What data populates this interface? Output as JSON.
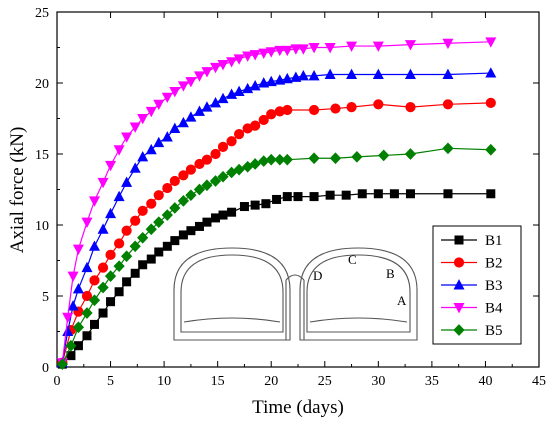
{
  "chart_data": {
    "type": "line",
    "xlabel": "Time (days)",
    "ylabel": "Axial force (kN)",
    "xlim": [
      0,
      45
    ],
    "ylim": [
      0,
      25
    ],
    "xticks": [
      0,
      5,
      10,
      15,
      20,
      25,
      30,
      35,
      40,
      45
    ],
    "yticks": [
      0,
      5,
      10,
      15,
      20,
      25
    ],
    "grid": false,
    "legend_position": "bottom-right",
    "series": [
      {
        "name": "B1",
        "color": "#000000",
        "marker": "square",
        "x": [
          0.5,
          1.3,
          2.0,
          2.8,
          3.5,
          4.3,
          5.0,
          5.8,
          6.5,
          7.3,
          8.0,
          8.8,
          9.5,
          10.3,
          11.0,
          11.8,
          12.5,
          13.3,
          14.0,
          14.8,
          15.5,
          16.3,
          17.5,
          18.5,
          19.5,
          20.5,
          21.5,
          22.5,
          24.0,
          25.5,
          27.0,
          28.5,
          30.0,
          31.5,
          33.0,
          36.5,
          40.5
        ],
        "y": [
          0.2,
          0.8,
          1.5,
          2.2,
          3.0,
          3.8,
          4.6,
          5.3,
          6.0,
          6.6,
          7.2,
          7.6,
          8.1,
          8.5,
          8.9,
          9.3,
          9.6,
          9.9,
          10.2,
          10.5,
          10.7,
          10.9,
          11.3,
          11.4,
          11.5,
          11.8,
          12.0,
          12.0,
          12.0,
          12.1,
          12.1,
          12.2,
          12.2,
          12.2,
          12.2,
          12.2,
          12.2
        ]
      },
      {
        "name": "B2",
        "color": "#ff0000",
        "marker": "circle",
        "x": [
          0.5,
          1.3,
          2.0,
          2.8,
          3.5,
          4.3,
          5.0,
          5.8,
          6.5,
          7.3,
          8.0,
          8.8,
          9.5,
          10.3,
          11.0,
          11.8,
          12.5,
          13.3,
          14.0,
          14.8,
          15.5,
          16.3,
          17.0,
          17.8,
          18.5,
          19.3,
          20.0,
          20.8,
          21.5,
          24.0,
          26.0,
          27.5,
          30.0,
          33.0,
          36.5,
          40.5
        ],
        "y": [
          0.3,
          2.6,
          3.9,
          5.0,
          6.1,
          7.0,
          7.9,
          8.7,
          9.6,
          10.3,
          11.0,
          11.5,
          12.1,
          12.6,
          13.1,
          13.5,
          13.9,
          14.3,
          14.6,
          15.0,
          15.5,
          15.9,
          16.4,
          16.8,
          17.0,
          17.4,
          17.8,
          18.0,
          18.1,
          18.1,
          18.2,
          18.3,
          18.5,
          18.3,
          18.5,
          18.6
        ]
      },
      {
        "name": "B3",
        "color": "#0000ff",
        "marker": "triangle-up",
        "x": [
          0.5,
          1.0,
          1.5,
          2.0,
          2.8,
          3.5,
          4.3,
          5.0,
          5.8,
          6.5,
          7.3,
          8.0,
          8.8,
          9.5,
          10.3,
          11.0,
          11.8,
          12.5,
          13.3,
          14.0,
          14.8,
          15.5,
          16.3,
          17.0,
          17.8,
          18.5,
          19.3,
          20.0,
          20.8,
          21.5,
          22.3,
          23.0,
          24.0,
          25.5,
          27.5,
          30.0,
          33.0,
          36.5,
          40.5
        ],
        "y": [
          0.3,
          2.5,
          4.3,
          5.5,
          7.0,
          8.5,
          9.7,
          10.8,
          12.0,
          13.0,
          14.0,
          14.8,
          15.3,
          15.8,
          16.2,
          16.8,
          17.2,
          17.6,
          18.0,
          18.3,
          18.6,
          18.9,
          19.2,
          19.4,
          19.6,
          19.8,
          20.0,
          20.1,
          20.2,
          20.3,
          20.4,
          20.5,
          20.5,
          20.6,
          20.6,
          20.6,
          20.6,
          20.6,
          20.7
        ]
      },
      {
        "name": "B4",
        "color": "#ff00ff",
        "marker": "triangle-down",
        "x": [
          0.5,
          1.0,
          1.5,
          2.0,
          2.8,
          3.5,
          4.3,
          5.0,
          5.8,
          6.5,
          7.3,
          8.0,
          8.8,
          9.5,
          10.3,
          11.0,
          11.8,
          12.5,
          13.3,
          14.0,
          14.8,
          15.5,
          16.3,
          17.0,
          17.8,
          18.5,
          19.3,
          20.0,
          20.8,
          21.5,
          22.3,
          23.0,
          24.0,
          25.5,
          27.5,
          30.0,
          33.0,
          36.5,
          40.5
        ],
        "y": [
          0.3,
          3.5,
          6.4,
          8.3,
          10.2,
          11.7,
          13.0,
          14.2,
          15.3,
          16.2,
          16.9,
          17.5,
          18.0,
          18.5,
          19.0,
          19.4,
          19.8,
          20.1,
          20.5,
          20.8,
          21.1,
          21.3,
          21.5,
          21.7,
          21.9,
          22.0,
          22.1,
          22.2,
          22.3,
          22.3,
          22.4,
          22.4,
          22.5,
          22.5,
          22.6,
          22.6,
          22.7,
          22.8,
          22.9
        ]
      },
      {
        "name": "B5",
        "color": "#008000",
        "marker": "diamond",
        "x": [
          0.5,
          1.3,
          2.0,
          2.8,
          3.5,
          4.3,
          5.0,
          5.8,
          6.5,
          7.3,
          8.0,
          8.8,
          9.5,
          10.3,
          11.0,
          11.8,
          12.5,
          13.3,
          14.0,
          14.8,
          15.5,
          16.3,
          17.0,
          17.8,
          18.5,
          19.3,
          20.0,
          20.8,
          21.5,
          24.0,
          26.0,
          28.0,
          30.5,
          33.0,
          36.5,
          40.5
        ],
        "y": [
          0.2,
          1.5,
          2.8,
          3.8,
          4.7,
          5.6,
          6.4,
          7.1,
          7.8,
          8.5,
          9.1,
          9.7,
          10.2,
          10.7,
          11.2,
          11.7,
          12.1,
          12.5,
          12.8,
          13.1,
          13.4,
          13.7,
          13.9,
          14.1,
          14.3,
          14.5,
          14.6,
          14.6,
          14.6,
          14.7,
          14.7,
          14.8,
          14.9,
          15.0,
          15.4,
          15.3
        ]
      }
    ],
    "inset": {
      "description_labels": [
        {
          "text": "A",
          "color": "#000000"
        },
        {
          "text": "B",
          "color": "#ff0000"
        },
        {
          "text": "C",
          "color": "#0000ff"
        },
        {
          "text": "D",
          "color": "#ff00ff"
        }
      ]
    }
  }
}
